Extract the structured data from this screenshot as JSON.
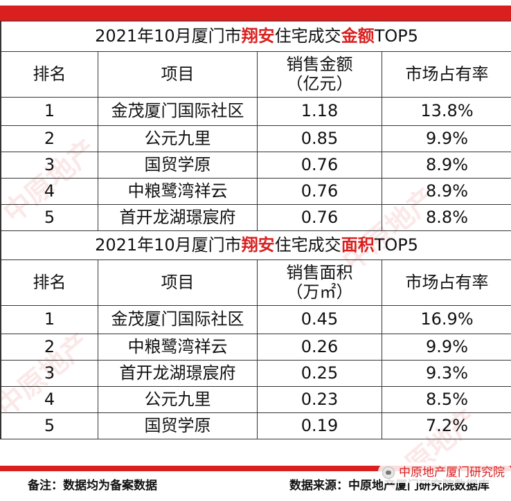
{
  "tables": [
    {
      "title_parts": [
        "2021年10月厦门市",
        "翔安",
        "住宅成交",
        "金额",
        "TOP5"
      ],
      "headers": [
        "排名",
        "项目",
        "销售金额",
        "（亿元）",
        "市场占有率"
      ],
      "rows": [
        {
          "rank": "1",
          "project": "金茂厦门国际社区",
          "value": "1.18",
          "share": "13.8%"
        },
        {
          "rank": "2",
          "project": "公元九里",
          "value": "0.85",
          "share": "9.9%"
        },
        {
          "rank": "3",
          "project": "国贸学原",
          "value": "0.76",
          "share": "8.9%"
        },
        {
          "rank": "4",
          "project": "中粮鹭湾祥云",
          "value": "0.76",
          "share": "8.9%"
        },
        {
          "rank": "5",
          "project": "首开龙湖璟宸府",
          "value": "0.76",
          "share": "8.8%"
        }
      ]
    },
    {
      "title_parts": [
        "2021年10月厦门市",
        "翔安",
        "住宅成交",
        "面积",
        "TOP5"
      ],
      "headers": [
        "排名",
        "项目",
        "销售面积",
        "（万㎡）",
        "市场占有率"
      ],
      "rows": [
        {
          "rank": "1",
          "project": "金茂厦门国际社区",
          "value": "0.45",
          "share": "16.9%"
        },
        {
          "rank": "2",
          "project": "中粮鹭湾祥云",
          "value": "0.26",
          "share": "9.9%"
        },
        {
          "rank": "3",
          "project": "首开龙湖璟宸府",
          "value": "0.25",
          "share": "9.3%"
        },
        {
          "rank": "4",
          "project": "公元九里",
          "value": "0.23",
          "share": "8.5%"
        },
        {
          "rank": "5",
          "project": "国贸学原",
          "value": "0.19",
          "share": "7.2%"
        }
      ]
    }
  ],
  "footer": {
    "note": "备注：数据均为备案数据",
    "source": "数据来源：中原地产厦门研究院数据库"
  },
  "brand_label": "中原地产厦门研究院",
  "watermark_text": "中原地产",
  "colors": {
    "accent": "#d9201f"
  }
}
